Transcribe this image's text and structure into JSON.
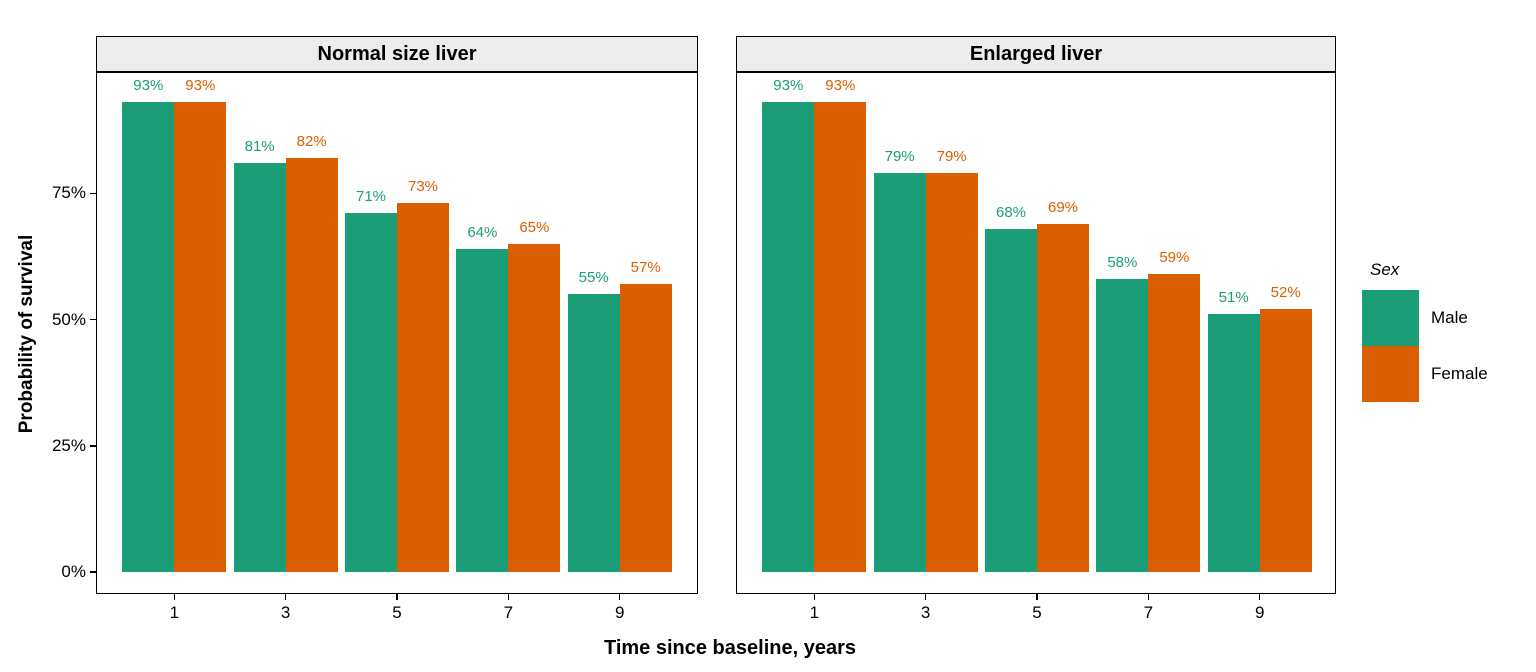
{
  "chart_data": {
    "type": "bar",
    "title": "",
    "xlabel": "Time since baseline, years",
    "ylabel": "Probability of survival",
    "categories": [
      "1",
      "3",
      "5",
      "7",
      "9"
    ],
    "y_ticks": [
      {
        "value": 0,
        "label": "0%"
      },
      {
        "value": 25,
        "label": "25%"
      },
      {
        "value": 50,
        "label": "50%"
      },
      {
        "value": 75,
        "label": "75%"
      }
    ],
    "ylim": [
      0,
      100
    ],
    "grid": false,
    "value_label_suffix": "%",
    "legend": {
      "title": "Sex",
      "position": "right",
      "items": [
        {
          "label": "Male",
          "color": "#1B9E77"
        },
        {
          "label": "Female",
          "color": "#D95F02"
        }
      ]
    },
    "facets": [
      {
        "title": "Normal size liver",
        "series": [
          {
            "name": "Male",
            "color": "#1B9E77",
            "values": [
              93,
              81,
              71,
              64,
              55
            ]
          },
          {
            "name": "Female",
            "color": "#D95F02",
            "values": [
              93,
              82,
              73,
              65,
              57
            ]
          }
        ]
      },
      {
        "title": "Enlarged liver",
        "series": [
          {
            "name": "Male",
            "color": "#1B9E77",
            "values": [
              93,
              79,
              68,
              58,
              51
            ]
          },
          {
            "name": "Female",
            "color": "#D95F02",
            "values": [
              93,
              79,
              69,
              59,
              52
            ]
          }
        ]
      }
    ]
  }
}
